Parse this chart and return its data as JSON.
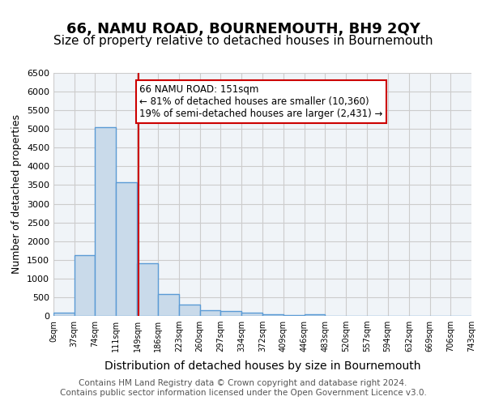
{
  "title": "66, NAMU ROAD, BOURNEMOUTH, BH9 2QY",
  "subtitle": "Size of property relative to detached houses in Bournemouth",
  "xlabel": "Distribution of detached houses by size in Bournemouth",
  "ylabel": "Number of detached properties",
  "bar_edges": [
    0,
    37,
    74,
    111,
    149,
    186,
    223,
    260,
    297,
    334,
    372,
    409,
    446,
    483,
    520,
    557,
    594,
    632,
    669,
    706,
    743
  ],
  "bar_heights": [
    80,
    1620,
    5050,
    3580,
    1400,
    590,
    300,
    155,
    140,
    90,
    50,
    30,
    50,
    0,
    0,
    0,
    0,
    0,
    0,
    0
  ],
  "bar_color": "#c9daea",
  "bar_edge_color": "#5b9bd5",
  "bar_linewidth": 1.0,
  "vline_x": 151,
  "vline_color": "#cc0000",
  "vline_linewidth": 1.5,
  "ylim": [
    0,
    6500
  ],
  "yticks": [
    0,
    500,
    1000,
    1500,
    2000,
    2500,
    3000,
    3500,
    4000,
    4500,
    5000,
    5500,
    6000,
    6500
  ],
  "xtick_labels": [
    "0sqm",
    "37sqm",
    "74sqm",
    "111sqm",
    "149sqm",
    "186sqm",
    "223sqm",
    "260sqm",
    "297sqm",
    "334sqm",
    "372sqm",
    "409sqm",
    "446sqm",
    "483sqm",
    "520sqm",
    "557sqm",
    "594sqm",
    "632sqm",
    "669sqm",
    "706sqm",
    "743sqm"
  ],
  "annotation_text": "66 NAMU ROAD: 151sqm\n← 81% of detached houses are smaller (10,360)\n19% of semi-detached houses are larger (2,431) →",
  "annotation_box_color": "#cc0000",
  "annotation_fontsize": 8.5,
  "grid_color": "#cccccc",
  "bg_color": "#f0f4f8",
  "footer_text": "Contains HM Land Registry data © Crown copyright and database right 2024.\nContains public sector information licensed under the Open Government Licence v3.0.",
  "title_fontsize": 13,
  "subtitle_fontsize": 11,
  "xlabel_fontsize": 10,
  "ylabel_fontsize": 9,
  "footer_fontsize": 7.5
}
